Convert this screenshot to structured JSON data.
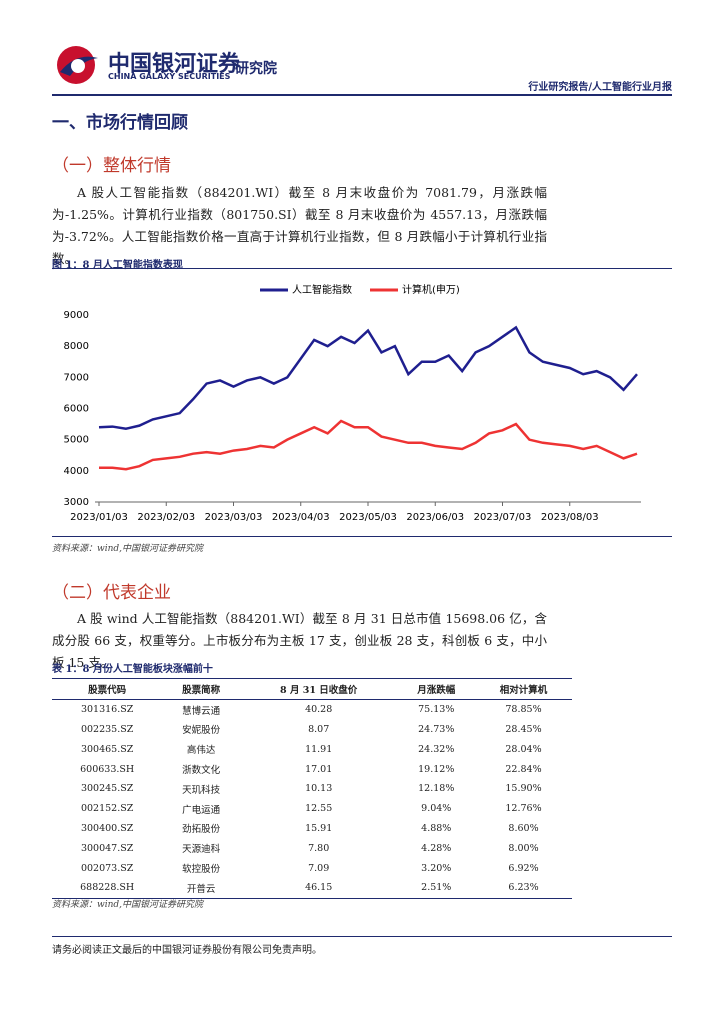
{
  "header": {
    "logo_cn": "中国银河证券",
    "logo_en": "CHINA GALAXY SECURITIES",
    "institute": "研究院",
    "report_type": "行业研究报告/人工智能行业月报"
  },
  "section": {
    "title": "一、市场行情回顾"
  },
  "subsection1": {
    "title": "（一）整体行情",
    "paragraph": "A 股人工智能指数（884201.WI）截至 8 月末收盘价为 7081.79，月涨跌幅为-1.25%。计算机行业指数（801750.SI）截至 8 月末收盘价为 4557.13，月涨跌幅为-3.72%。人工智能指数价格一直高于计算机行业指数，但 8 月跌幅小于计算机行业指数。"
  },
  "figure": {
    "caption": "图 1：8 月人工智能指数表现",
    "source": "资料来源：wind,中国银河证券研究院"
  },
  "chart_data": {
    "type": "line",
    "categories": [
      "2023/01/03",
      null,
      null,
      null,
      null,
      "2023/02/03",
      null,
      null,
      null,
      null,
      "2023/03/03",
      null,
      null,
      null,
      null,
      "2023/04/03",
      null,
      null,
      null,
      null,
      "2023/05/03",
      null,
      null,
      null,
      null,
      "2023/06/03",
      null,
      null,
      null,
      null,
      "2023/07/03",
      null,
      null,
      null,
      null,
      "2023/08/03",
      null,
      null,
      null,
      null,
      null
    ],
    "series": [
      {
        "name": "人工智能指数",
        "color": "#1f1f8f",
        "values": [
          5400,
          5420,
          5350,
          5450,
          5650,
          5750,
          5850,
          6300,
          6800,
          6900,
          6700,
          6900,
          7000,
          6800,
          7000,
          7600,
          8200,
          8000,
          8300,
          8100,
          8500,
          7800,
          8000,
          7100,
          7500,
          7500,
          7700,
          7200,
          7800,
          8000,
          8300,
          8600,
          7800,
          7500,
          7400,
          7300,
          7100,
          7200,
          7000,
          6600,
          7100
        ]
      },
      {
        "name": "计算机(申万)",
        "color": "#ee3333",
        "values": [
          4100,
          4100,
          4050,
          4150,
          4350,
          4400,
          4450,
          4550,
          4600,
          4550,
          4650,
          4700,
          4800,
          4750,
          5000,
          5200,
          5400,
          5200,
          5600,
          5400,
          5400,
          5100,
          5000,
          4900,
          4900,
          4800,
          4750,
          4700,
          4900,
          5200,
          5300,
          5500,
          5000,
          4900,
          4850,
          4800,
          4700,
          4800,
          4600,
          4400,
          4550
        ]
      }
    ],
    "ylim": [
      3000,
      9000
    ],
    "yticks": [
      3000,
      4000,
      5000,
      6000,
      7000,
      8000,
      9000
    ],
    "legend": "top"
  },
  "subsection2": {
    "title": "（二）代表企业",
    "paragraph": "A 股 wind 人工智能指数（884201.WI）截至 8 月 31 日总市值 15698.06 亿，含成分股 66 支，权重等分。上市板分布为主板 17 支，创业板 28 支，科创板 6 支，中小板 15 支。"
  },
  "table": {
    "caption": "表 1：8 月份人工智能板块涨幅前十",
    "header": [
      "股票代码",
      "股票简称",
      "8 月 31 日收盘价",
      "月涨跌幅",
      "相对计算机"
    ],
    "rows": [
      [
        "301316.SZ",
        "慧博云通",
        "40.28",
        "75.13%",
        "78.85%"
      ],
      [
        "002235.SZ",
        "安妮股份",
        "8.07",
        "24.73%",
        "28.45%"
      ],
      [
        "300465.SZ",
        "高伟达",
        "11.91",
        "24.32%",
        "28.04%"
      ],
      [
        "600633.SH",
        "浙数文化",
        "17.01",
        "19.12%",
        "22.84%"
      ],
      [
        "300245.SZ",
        "天玑科技",
        "10.13",
        "12.18%",
        "15.90%"
      ],
      [
        "002152.SZ",
        "广电运通",
        "12.55",
        "9.04%",
        "12.76%"
      ],
      [
        "300400.SZ",
        "劲拓股份",
        "15.91",
        "4.88%",
        "8.60%"
      ],
      [
        "300047.SZ",
        "天源迪科",
        "7.80",
        "4.28%",
        "8.00%"
      ],
      [
        "002073.SZ",
        "软控股份",
        "7.09",
        "3.20%",
        "6.92%"
      ],
      [
        "688228.SH",
        "开普云",
        "46.15",
        "2.51%",
        "6.23%"
      ]
    ],
    "source": "资料来源：wind,中国银河证券研究院"
  },
  "footer": {
    "disclaimer": "请务必阅读正文最后的中国银河证券股份有限公司免责声明。"
  }
}
